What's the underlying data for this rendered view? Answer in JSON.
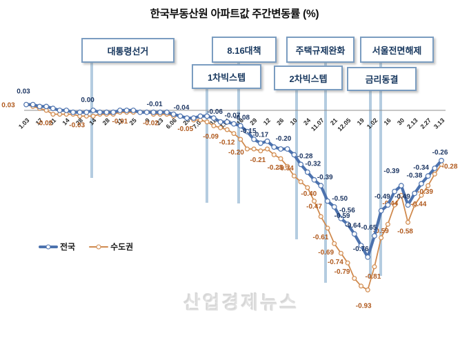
{
  "title": "한국부동산원 아파트값 주간변동률 (%)",
  "watermark": "산업경제뉴스",
  "legend": {
    "national": "전국",
    "metro": "수도권"
  },
  "colors": {
    "national_line": "#4C72AE",
    "national_label": "#1F3864",
    "metro_line": "#D08A4E",
    "metro_label": "#B05A1E",
    "event_line": "#B4CCE0",
    "event_box_border": "#7A9CC0",
    "event_box_text": "#17375E",
    "axis_line": "#8C8C8C",
    "tick_text": "#262626"
  },
  "chart_data": {
    "type": "line",
    "title": "한국부동산원 아파트값 주간변동률 (%)",
    "ylabel": "",
    "xlabel": "",
    "ylim": [
      -1.0,
      0.12
    ],
    "grid": false,
    "legend_position": "bottom-left",
    "x": [
      "1.03",
      "1.10",
      "1.17",
      "1.24",
      "1.31",
      "2.07",
      "2.14",
      "2.21",
      "2.28",
      "3.07",
      "3.14",
      "3.21",
      "3.28",
      "4.04",
      "4.11",
      "4.18",
      "4.25",
      "5.02",
      "5.09",
      "5.16",
      "5.23",
      "5.30",
      "6.06",
      "6.13",
      "6.20",
      "6.27",
      "7.04",
      "7.11",
      "7.18",
      "7.25",
      "8.01",
      "8.08",
      "8.16",
      "8.22",
      "8.29",
      "9.05",
      "9.12",
      "9.19",
      "9.26",
      "10.03",
      "10.10",
      "10.17",
      "10.24",
      "10.31",
      "11.07",
      "11.14",
      "11.21",
      "11.28",
      "12.05",
      "12.12",
      "12.19",
      "12.26",
      "1.02",
      "1.09",
      "1.16",
      "1.23",
      "1.30",
      "2.06",
      "2.13",
      "2.20",
      "2.27",
      "3.06",
      "3.13"
    ],
    "x_axis_tick_labels": [
      "1.03",
      "17",
      "31",
      "14",
      "28",
      "14",
      "28",
      "11",
      "25",
      "9",
      "23",
      "6.06",
      "20",
      "7.04",
      "18",
      "8.01",
      "16",
      "29",
      "12",
      "26",
      "10",
      "24",
      "11.07",
      "21",
      "12.05",
      "19",
      "1.02",
      "16",
      "30",
      "2.13",
      "2.27",
      "3.13"
    ],
    "series": [
      {
        "name": "수도권",
        "values": [
          0.03,
          0.02,
          0.01,
          0.0,
          -0.02,
          -0.02,
          -0.02,
          -0.02,
          -0.03,
          -0.03,
          -0.03,
          -0.02,
          -0.02,
          -0.02,
          -0.01,
          -0.01,
          -0.01,
          -0.01,
          -0.01,
          -0.02,
          -0.02,
          -0.02,
          -0.03,
          -0.03,
          -0.04,
          -0.05,
          -0.05,
          -0.06,
          -0.08,
          -0.09,
          -0.1,
          -0.12,
          -0.15,
          -0.2,
          -0.2,
          -0.21,
          -0.2,
          -0.23,
          -0.25,
          -0.29,
          -0.34,
          -0.37,
          -0.4,
          -0.47,
          -0.55,
          -0.61,
          -0.69,
          -0.74,
          -0.79,
          -0.87,
          -0.91,
          -0.93,
          -0.81,
          -0.66,
          -0.59,
          -0.49,
          -0.44,
          -0.58,
          -0.49,
          -0.44,
          -0.39,
          -0.33,
          -0.28
        ],
        "labeled_points": [
          {
            "i": 0,
            "dx": -26,
            "dy": 4
          },
          {
            "i": 4,
            "dx": -12
          },
          {
            "i": 8,
            "dx": -4
          },
          {
            "i": 14,
            "dx": 0
          },
          {
            "i": 19,
            "dx": -4
          },
          {
            "i": 25,
            "dx": -12
          },
          {
            "i": 29,
            "dx": -14
          },
          {
            "i": 31,
            "dx": -10
          },
          {
            "i": 33,
            "dx": -16,
            "dy": 8
          },
          {
            "i": 35,
            "dx": -4
          },
          {
            "i": 38,
            "dx": -8
          },
          {
            "i": 40,
            "dx": -12,
            "dy": -8
          },
          {
            "i": 42,
            "dx": 2,
            "dy": 12
          },
          {
            "i": 43,
            "dx": 0,
            "dy": 11
          },
          {
            "i": 45,
            "dx": -10
          },
          {
            "i": 46,
            "dx": -12
          },
          {
            "i": 47,
            "dx": -8
          },
          {
            "i": 48,
            "dx": -8
          },
          {
            "i": 51,
            "dx": -6,
            "dy": 26
          },
          {
            "i": 52,
            "dx": -2,
            "dy": 17
          },
          {
            "i": 54,
            "dx": -10,
            "dy": 13
          },
          {
            "i": 56,
            "dx": -16,
            "dy": 15
          },
          {
            "i": 57,
            "dx": -4
          },
          {
            "i": 59,
            "dx": -4
          },
          {
            "i": 60,
            "dx": -4,
            "dy": 12
          },
          {
            "i": 62,
            "dx": 12,
            "dy": 6
          }
        ]
      },
      {
        "name": "전국",
        "values": [
          0.03,
          0.03,
          0.02,
          0.02,
          0.01,
          0.0,
          0.0,
          -0.01,
          -0.01,
          -0.01,
          0.0,
          -0.01,
          -0.01,
          -0.01,
          0.0,
          0.0,
          0.0,
          -0.01,
          -0.01,
          -0.01,
          -0.01,
          -0.01,
          -0.02,
          -0.03,
          -0.04,
          -0.04,
          -0.03,
          -0.03,
          -0.04,
          -0.06,
          -0.06,
          -0.07,
          -0.08,
          -0.11,
          -0.15,
          -0.17,
          -0.16,
          -0.19,
          -0.2,
          -0.2,
          -0.23,
          -0.28,
          -0.32,
          -0.36,
          -0.39,
          -0.47,
          -0.5,
          -0.56,
          -0.59,
          -0.64,
          -0.7,
          -0.76,
          -0.65,
          -0.52,
          -0.49,
          -0.42,
          -0.39,
          -0.49,
          -0.43,
          -0.38,
          -0.34,
          -0.3,
          -0.26
        ],
        "labeled_points": [
          {
            "i": 0,
            "dx": -4,
            "dy": -16
          },
          {
            "i": 10,
            "dy": -12
          },
          {
            "i": 20
          },
          {
            "i": 24,
            "dy": -12
          },
          {
            "i": 29,
            "dy": -12
          },
          {
            "i": 31,
            "dx": -2
          },
          {
            "i": 32,
            "dx": 2
          },
          {
            "i": 34
          },
          {
            "i": 35,
            "dx": 0
          },
          {
            "i": 38,
            "dx": 4,
            "dy": -12
          },
          {
            "i": 41,
            "dx": 6
          },
          {
            "i": 42,
            "dx": 8
          },
          {
            "i": 44,
            "dx": 6
          },
          {
            "i": 46,
            "dx": 8
          },
          {
            "i": 47,
            "dx": 9
          },
          {
            "i": 48,
            "dx": -8
          },
          {
            "i": 49,
            "dx": -2
          },
          {
            "i": 51,
            "dx": -10
          },
          {
            "i": 52,
            "dx": -8
          },
          {
            "i": 54,
            "dx": -8
          },
          {
            "i": 56,
            "dx": -14,
            "dy": -18
          },
          {
            "i": 57,
            "dx": -8
          },
          {
            "i": 59,
            "dx": -10
          },
          {
            "i": 60,
            "dx": -10
          },
          {
            "i": 62,
            "dx": -2
          }
        ]
      }
    ],
    "events": [
      {
        "label": "대통령선거"
      },
      {
        "label": "8.16대책"
      },
      {
        "label": "1차빅스텝"
      },
      {
        "label": "주택규제완화"
      },
      {
        "label": "2차빅스텝"
      },
      {
        "label": "서울전면해제"
      },
      {
        "label": "금리동결"
      }
    ]
  }
}
